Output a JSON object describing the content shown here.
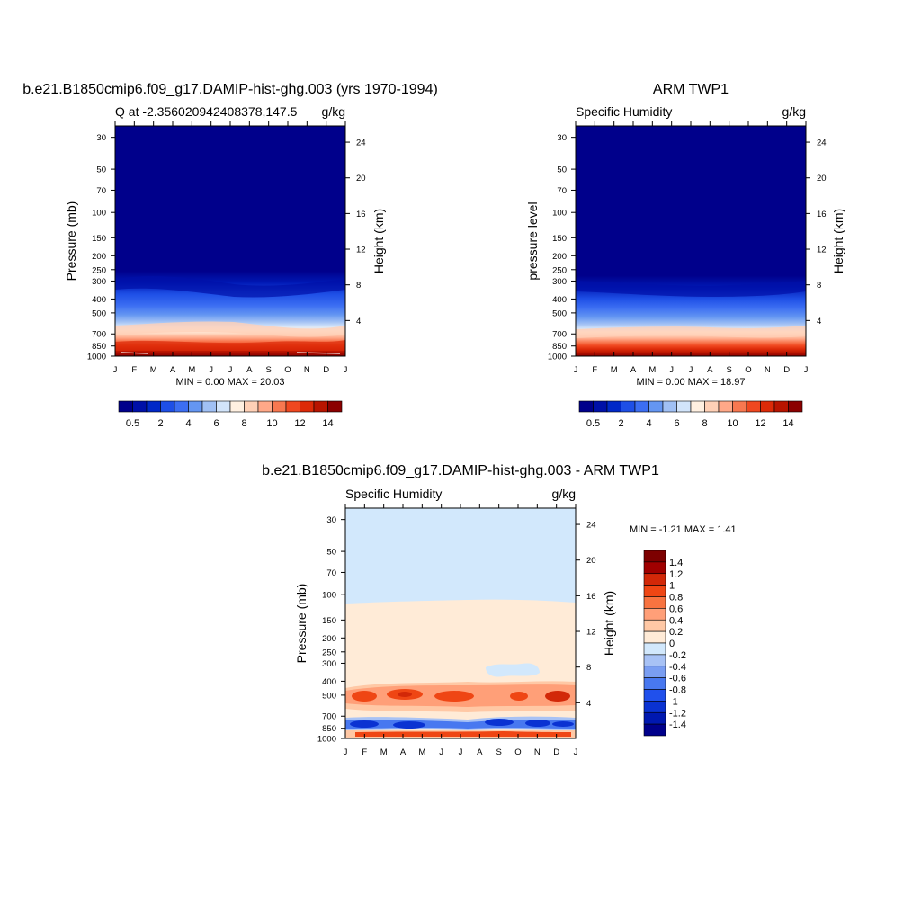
{
  "chart_data": [
    {
      "type": "heatmap",
      "title": "b.e21.B1850cmip6.f09_g17.DAMIP-hist-ghg.003 (yrs 1970-1994)",
      "subtitle_left": "Q at -2.356020942408378,147.5",
      "subtitle_right": "g/kg",
      "ylabel": "Pressure (mb)",
      "ylabel_right": "Height (km)",
      "x_ticks": [
        "J",
        "F",
        "M",
        "A",
        "M",
        "J",
        "J",
        "A",
        "S",
        "O",
        "N",
        "D",
        "J"
      ],
      "y_ticks": [
        30,
        50,
        70,
        100,
        150,
        200,
        250,
        300,
        400,
        500,
        700,
        850,
        1000
      ],
      "y_right_ticks": [
        24,
        20,
        16,
        12,
        8,
        4
      ],
      "ylim": [
        1000,
        25
      ],
      "yscale": "log",
      "stats": "MIN =   0.00 MAX =  20.03",
      "min": 0.0,
      "max": 20.03,
      "colorbar": {
        "levels": [
          0.5,
          1,
          1.5,
          2,
          3,
          4,
          5,
          6,
          7,
          8,
          9,
          10,
          11,
          12,
          13,
          14
        ],
        "labels": [
          "0.5",
          "2",
          "4",
          "6",
          "8",
          "10",
          "12",
          "14"
        ],
        "orientation": "horizontal"
      }
    },
    {
      "type": "heatmap",
      "title": "ARM TWP1",
      "subtitle_left": "Specific Humidity",
      "subtitle_right": "g/kg",
      "ylabel": "pressure level",
      "ylabel_right": "Height (km)",
      "x_ticks": [
        "J",
        "F",
        "M",
        "A",
        "M",
        "J",
        "J",
        "A",
        "S",
        "O",
        "N",
        "D",
        "J"
      ],
      "y_ticks": [
        30,
        50,
        70,
        100,
        150,
        200,
        250,
        300,
        400,
        500,
        700,
        850,
        1000
      ],
      "y_right_ticks": [
        24,
        20,
        16,
        12,
        8,
        4
      ],
      "ylim": [
        1000,
        25
      ],
      "yscale": "log",
      "stats": "MIN =   0.00 MAX =  18.97",
      "min": 0.0,
      "max": 18.97,
      "colorbar": {
        "levels": [
          0.5,
          1,
          1.5,
          2,
          3,
          4,
          5,
          6,
          7,
          8,
          9,
          10,
          11,
          12,
          13,
          14
        ],
        "labels": [
          "0.5",
          "2",
          "4",
          "6",
          "8",
          "10",
          "12",
          "14"
        ],
        "orientation": "horizontal"
      }
    },
    {
      "type": "heatmap",
      "title": "b.e21.B1850cmip6.f09_g17.DAMIP-hist-ghg.003 - ARM TWP1",
      "subtitle_left": "Specific Humidity",
      "subtitle_right": "g/kg",
      "ylabel": "Pressure (mb)",
      "ylabel_right": "Height (km)",
      "x_ticks": [
        "J",
        "F",
        "M",
        "A",
        "M",
        "J",
        "J",
        "A",
        "S",
        "O",
        "N",
        "D",
        "J"
      ],
      "y_ticks": [
        30,
        50,
        70,
        100,
        150,
        200,
        250,
        300,
        400,
        500,
        700,
        850,
        1000
      ],
      "y_right_ticks": [
        24,
        20,
        16,
        12,
        8,
        4
      ],
      "ylim": [
        1000,
        25
      ],
      "yscale": "log",
      "stats": "MIN =  -1.21 MAX =   1.41",
      "min": -1.21,
      "max": 1.41,
      "colorbar": {
        "labels": [
          "1.4",
          "1.2",
          "1",
          "0.8",
          "0.6",
          "0.4",
          "0.2",
          "0",
          "-0.2",
          "-0.4",
          "-0.6",
          "-0.8",
          "-1",
          "-1.2",
          "-1.4"
        ],
        "orientation": "vertical"
      }
    }
  ],
  "palettes": {
    "humidity": [
      "#00008b",
      "#0010a8",
      "#0028c8",
      "#1e4fe6",
      "#3c6ef2",
      "#6496f2",
      "#a0c0f4",
      "#d2e4fa",
      "#fff0e1",
      "#ffd0b6",
      "#ffa888",
      "#f87850",
      "#f04820",
      "#dc2a08",
      "#b81400",
      "#8b0000"
    ],
    "difference": [
      "#00008b",
      "#0018b0",
      "#0a32d2",
      "#2050ec",
      "#4878f0",
      "#7a9ef2",
      "#a8c2f5",
      "#d2e8fc",
      "#ffebd7",
      "#ffc8a5",
      "#ff9f78",
      "#f87340",
      "#ef4614",
      "#d22808",
      "#a00000",
      "#7d0000"
    ]
  }
}
